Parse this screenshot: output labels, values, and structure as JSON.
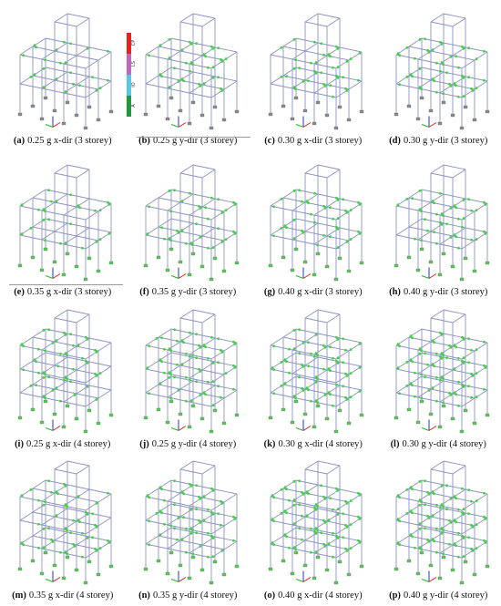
{
  "panels": [
    {
      "label": "(a)",
      "caption": "0.25 g x-dir (3 storey)",
      "storeys": 3
    },
    {
      "label": "(b)",
      "caption": "0.25 g y-dir (3 storey)",
      "storeys": 3
    },
    {
      "label": "(c)",
      "caption": "0.30 g x-dir (3 storey)",
      "storeys": 3
    },
    {
      "label": "(d)",
      "caption": "0.30 g y-dir (3 storey)",
      "storeys": 3
    },
    {
      "label": "(e)",
      "caption": "0.35 g x-dir (3 storey)",
      "storeys": 3
    },
    {
      "label": "(f)",
      "caption": "0.35 g y-dir (3 storey)",
      "storeys": 3
    },
    {
      "label": "(g)",
      "caption": "0.40 g x-dir (3 storey)",
      "storeys": 3
    },
    {
      "label": "(h)",
      "caption": "0.40 g y-dir (3 storey)",
      "storeys": 3
    },
    {
      "label": "(i)",
      "caption": "0.25 g x-dir (4 storey)",
      "storeys": 4
    },
    {
      "label": "(j)",
      "caption": "0.25 g y-dir (4 storey)",
      "storeys": 4
    },
    {
      "label": "(k)",
      "caption": "0.30 g x-dir (4 storey)",
      "storeys": 4
    },
    {
      "label": "(l)",
      "caption": "0.30 g y-dir (4 storey)",
      "storeys": 4
    },
    {
      "label": "(m)",
      "caption": "0.35 g x-dir (4 storey)",
      "storeys": 4
    },
    {
      "label": "(n)",
      "caption": "0.35 g y-dir (4 storey)",
      "storeys": 4
    },
    {
      "label": "(o)",
      "caption": "0.40 g x-dir (4 storey)",
      "storeys": 4
    },
    {
      "label": "(p)",
      "caption": "0.40 g y-dir (4 storey)",
      "storeys": 4
    }
  ],
  "legend": [
    "CP",
    "LS",
    "IO",
    "A"
  ]
}
